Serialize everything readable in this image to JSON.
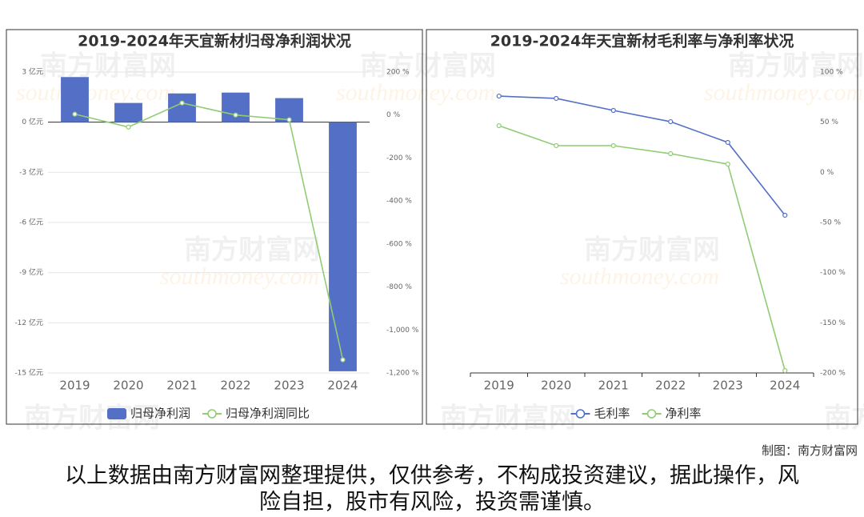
{
  "charts": [
    {
      "type": "bar",
      "title": "2019-2024年天宜新材归母净利润状况",
      "categories": [
        "2019",
        "2020",
        "2021",
        "2022",
        "2023",
        "2024"
      ],
      "series": [
        {
          "name": "归母净利润",
          "type": "bar",
          "color": "#5470c6",
          "values": [
            2.7,
            1.15,
            1.72,
            1.77,
            1.44,
            -14.9
          ]
        },
        {
          "name": "归母净利润同比",
          "type": "line",
          "axis": "y2",
          "color": "#91cc75",
          "values": [
            4,
            -56,
            56,
            0,
            -22,
            -1139
          ]
        }
      ],
      "ylim": [
        -15,
        3
      ],
      "yticks": [
        {
          "value": 3,
          "label": "3 亿元"
        },
        {
          "value": 0,
          "label": "0 亿元"
        },
        {
          "value": -3,
          "label": "-3 亿元"
        },
        {
          "value": -6,
          "label": "-6 亿元"
        },
        {
          "value": -9,
          "label": "-9 亿元"
        },
        {
          "value": -12,
          "label": "-12 亿元"
        },
        {
          "value": -15,
          "label": "-15 亿元"
        }
      ],
      "y2lim": [
        -1200,
        200
      ],
      "y2ticks": [
        {
          "value": 200,
          "label": "200 %"
        },
        {
          "value": 0,
          "label": "0 %"
        },
        {
          "value": -200,
          "label": "-200 %"
        },
        {
          "value": -400,
          "label": "-400 %"
        },
        {
          "value": -600,
          "label": "-600 %"
        },
        {
          "value": -800,
          "label": "-800 %"
        },
        {
          "value": -1000,
          "label": "-1,000 %"
        },
        {
          "value": -1200,
          "label": "-1,200 %"
        }
      ],
      "grid": true
    },
    {
      "type": "line",
      "title": "2019-2024年天宜新材毛利率与净利率状况",
      "categories": [
        "2019",
        "2020",
        "2021",
        "2022",
        "2023",
        "2024"
      ],
      "series": [
        {
          "name": "毛利率",
          "type": "line",
          "color": "#5470c6",
          "values": [
            76,
            73.7,
            61.7,
            50.5,
            29.8,
            -42.8
          ]
        },
        {
          "name": "净利率",
          "type": "line",
          "color": "#91cc75",
          "values": [
            46.5,
            26.6,
            26.6,
            18.6,
            8.2,
            -197.7
          ]
        }
      ],
      "ylim": [
        -200,
        100
      ],
      "yticks": [
        {
          "value": 100,
          "label": "100 %"
        },
        {
          "value": 50,
          "label": "50 %"
        },
        {
          "value": 0,
          "label": "0 %"
        },
        {
          "value": -50,
          "label": "-50 %"
        },
        {
          "value": -100,
          "label": "-100 %"
        },
        {
          "value": -150,
          "label": "-150 %"
        },
        {
          "value": -200,
          "label": "-200 %"
        }
      ],
      "yaxis_position": "right",
      "grid": false
    }
  ],
  "watermark": {
    "name": "南方财富网",
    "site": "southmoney.com"
  },
  "credit": "制图：南方财富网",
  "disclaimer": "以上数据由南方财富网整理提供，仅供参考，不构成投资建议，据此操作，风险自担，股市有风险，投资需谨慎。"
}
